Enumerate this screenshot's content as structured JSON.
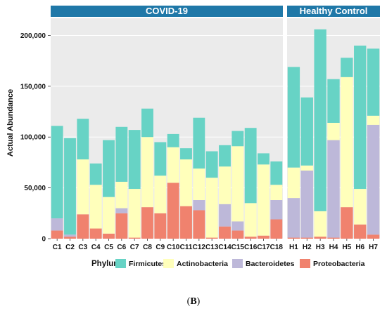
{
  "chart_data": {
    "type": "bar",
    "stacked": true,
    "ylabel": "Actual Abundance",
    "ylim": [
      0,
      210000
    ],
    "yticks": [
      0,
      50000,
      100000,
      150000,
      200000
    ],
    "ytick_labels": [
      "0",
      "50,000",
      "100,000",
      "150,000",
      "200,000"
    ],
    "panels": [
      {
        "name": "COVID-19",
        "categories": [
          "C1",
          "C2",
          "C3",
          "C4",
          "C5",
          "C6",
          "C7",
          "C8",
          "C9",
          "C10",
          "C11",
          "C12",
          "C13",
          "C14",
          "C15",
          "C16",
          "C17",
          "C18"
        ]
      },
      {
        "name": "Healthy Control",
        "categories": [
          "H1",
          "H2",
          "H3",
          "H4",
          "H5",
          "H6",
          "H7"
        ]
      }
    ],
    "legend_title": "Phylum",
    "legend_position": "bottom",
    "series": [
      {
        "name": "Proteobacteria",
        "color": "#f0826e",
        "values": [
          8000,
          2000,
          24000,
          10000,
          5000,
          25000,
          1000,
          31000,
          25000,
          55000,
          32000,
          28000,
          1000,
          12000,
          8000,
          2000,
          3000,
          19000,
          1000,
          1000,
          2000,
          1000,
          31000,
          14000,
          4000
        ]
      },
      {
        "name": "Bacteroidetes",
        "color": "#bdb8d9",
        "values": [
          12000,
          2000,
          0,
          0,
          0,
          5000,
          0,
          0,
          0,
          0,
          0,
          10000,
          0,
          22000,
          9000,
          0,
          0,
          19000,
          39000,
          66000,
          0,
          96000,
          0,
          0,
          108000
        ]
      },
      {
        "name": "Actinobacteria",
        "color": "#ffffbb",
        "values": [
          0,
          0,
          54000,
          43000,
          36000,
          26000,
          48000,
          69000,
          37000,
          35000,
          46000,
          31000,
          59000,
          37000,
          74000,
          33000,
          70000,
          15000,
          30000,
          5000,
          25000,
          17000,
          128000,
          35000,
          9000
        ]
      },
      {
        "name": "Firmicutes",
        "color": "#67d3c5",
        "values": [
          91000,
          95000,
          40000,
          21000,
          56000,
          54000,
          58000,
          28000,
          33000,
          13000,
          11000,
          50000,
          26000,
          21000,
          15000,
          74000,
          11000,
          23000,
          99000,
          67000,
          179000,
          43000,
          19000,
          141000,
          66000
        ]
      }
    ]
  },
  "legend_order": [
    "Firmicutes",
    "Actinobacteria",
    "Bacteroidetes",
    "Proteobacteria"
  ],
  "caption": {
    "open": "(",
    "letter": "B",
    "close": ")"
  }
}
